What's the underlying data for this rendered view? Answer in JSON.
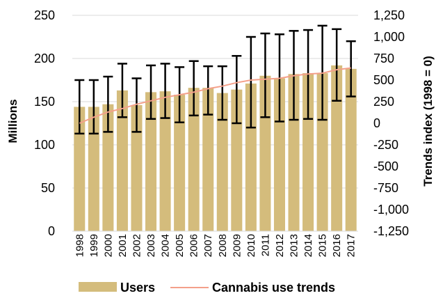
{
  "chart_data": {
    "type": "bar",
    "categories": [
      "1998",
      "1999",
      "2000",
      "2001",
      "2002",
      "2003",
      "2004",
      "2005",
      "2006",
      "2007",
      "2008",
      "2009",
      "2010",
      "2011",
      "2012",
      "2013",
      "2014",
      "2015",
      "2016",
      "2017"
    ],
    "series": [
      {
        "name": "Users",
        "type": "bar",
        "axis": "left",
        "color": "#D4BC7C",
        "values": [
          144,
          144,
          147,
          163,
          146,
          161,
          162,
          158,
          166,
          166,
          160,
          164,
          171,
          180,
          177,
          182,
          183,
          183,
          192,
          188
        ],
        "error_low": [
          113,
          113,
          115,
          132,
          115,
          130,
          131,
          126,
          134,
          135,
          129,
          125,
          120,
          132,
          127,
          129,
          130,
          129,
          151,
          156
        ],
        "error_high": [
          175,
          175,
          179,
          194,
          177,
          192,
          194,
          190,
          197,
          191,
          191,
          203,
          225,
          229,
          228,
          232,
          233,
          238,
          234,
          220
        ]
      },
      {
        "name": "Cannabis use trends",
        "type": "line",
        "axis": "right",
        "color": "#F4A08A",
        "values": [
          0,
          70,
          130,
          170,
          220,
          260,
          300,
          330,
          360,
          400,
          430,
          470,
          500,
          510,
          520,
          550,
          570,
          580,
          620,
          640
        ]
      }
    ],
    "ylabel": "Millions",
    "y2label": "Trends index (1998 = 0)",
    "ylim": [
      0,
      250
    ],
    "y2lim": [
      -1250,
      1250
    ],
    "yticks": [
      "0",
      "50",
      "100",
      "150",
      "200",
      "250"
    ],
    "y2ticks": [
      "-1,250",
      "-1,000",
      "-750",
      "-500",
      "-250",
      "0",
      "250",
      "500",
      "750",
      "1,000",
      "1,250"
    ],
    "grid": true,
    "legend_position": "bottom"
  }
}
